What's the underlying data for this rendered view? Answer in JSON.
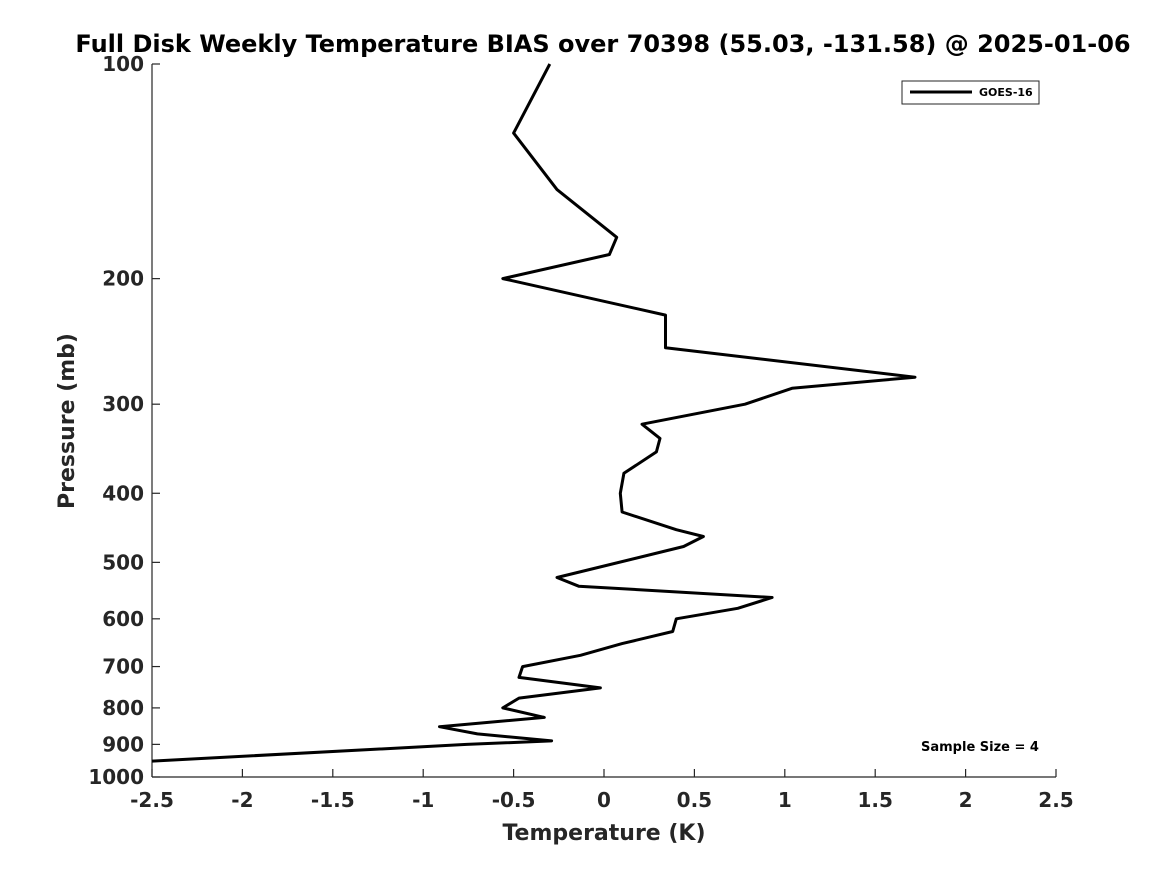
{
  "chart_data": {
    "type": "line",
    "title": "Full Disk Weekly Temperature BIAS over 70398 (55.03, -131.58) @ 2025-01-06",
    "xlabel": "Temperature (K)",
    "ylabel": "Pressure (mb)",
    "xlim": [
      -2.5,
      2.5
    ],
    "ylim": [
      100,
      1000
    ],
    "y_scale": "log",
    "y_reversed": true,
    "xticks": [
      -2.5,
      -2,
      -1.5,
      -1,
      -0.5,
      0,
      0.5,
      1,
      1.5,
      2,
      2.5
    ],
    "xtick_labels": [
      "-2.5",
      "-2",
      "-1.5",
      "-1",
      "-0.5",
      "0",
      "0.5",
      "1",
      "1.5",
      "2",
      "2.5"
    ],
    "yticks": [
      100,
      200,
      300,
      400,
      500,
      600,
      700,
      800,
      900,
      1000
    ],
    "ytick_labels": [
      "100",
      "200",
      "300",
      "400",
      "500",
      "600",
      "700",
      "800",
      "900",
      "1000"
    ],
    "grid": false,
    "legend": {
      "position": "top-right",
      "entries": [
        "GOES-16"
      ]
    },
    "annotation": "Sample Size = 4",
    "series": [
      {
        "name": "GOES-16",
        "color": "#000000",
        "points": [
          {
            "x": -0.3,
            "p": 100
          },
          {
            "x": -0.5,
            "p": 125
          },
          {
            "x": -0.26,
            "p": 150
          },
          {
            "x": 0.07,
            "p": 175
          },
          {
            "x": 0.03,
            "p": 185
          },
          {
            "x": -0.56,
            "p": 200
          },
          {
            "x": 0.34,
            "p": 225
          },
          {
            "x": 0.34,
            "p": 250
          },
          {
            "x": 1.72,
            "p": 275
          },
          {
            "x": 1.04,
            "p": 285
          },
          {
            "x": 0.78,
            "p": 300
          },
          {
            "x": 0.21,
            "p": 320
          },
          {
            "x": 0.31,
            "p": 335
          },
          {
            "x": 0.29,
            "p": 350
          },
          {
            "x": 0.11,
            "p": 375
          },
          {
            "x": 0.09,
            "p": 400
          },
          {
            "x": 0.1,
            "p": 425
          },
          {
            "x": 0.4,
            "p": 450
          },
          {
            "x": 0.55,
            "p": 460
          },
          {
            "x": 0.44,
            "p": 475
          },
          {
            "x": -0.26,
            "p": 525
          },
          {
            "x": -0.14,
            "p": 540
          },
          {
            "x": 0.93,
            "p": 560
          },
          {
            "x": 0.74,
            "p": 580
          },
          {
            "x": 0.4,
            "p": 600
          },
          {
            "x": 0.38,
            "p": 625
          },
          {
            "x": 0.1,
            "p": 650
          },
          {
            "x": -0.13,
            "p": 675
          },
          {
            "x": -0.45,
            "p": 700
          },
          {
            "x": -0.47,
            "p": 725
          },
          {
            "x": -0.02,
            "p": 750
          },
          {
            "x": -0.47,
            "p": 775
          },
          {
            "x": -0.56,
            "p": 800
          },
          {
            "x": -0.33,
            "p": 825
          },
          {
            "x": -0.91,
            "p": 850
          },
          {
            "x": -0.7,
            "p": 870
          },
          {
            "x": -0.29,
            "p": 890
          },
          {
            "x": -0.76,
            "p": 900
          },
          {
            "x": -2.5,
            "p": 950
          }
        ]
      }
    ]
  }
}
